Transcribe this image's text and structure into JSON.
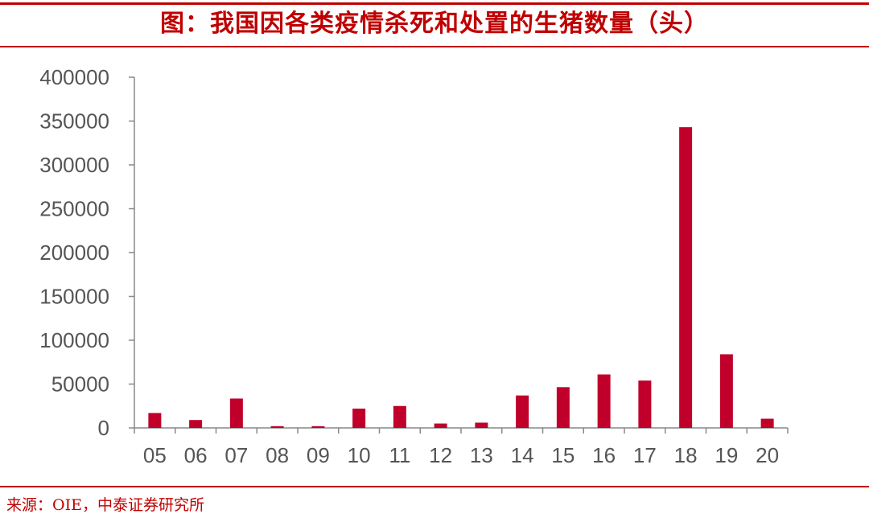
{
  "header": {
    "title": "图：我国因各类疫情杀死和处置的生猪数量（头）"
  },
  "footer": {
    "source": "来源：OIE，中泰证券研究所"
  },
  "colors": {
    "accent": "#c00000",
    "bar": "#c0002a",
    "axis": "#888888",
    "label": "#555555"
  },
  "chart_data": {
    "type": "bar",
    "title": "图：我国因各类疫情杀死和处置的生猪数量（头）",
    "xlabel": "",
    "ylabel": "",
    "categories": [
      "05",
      "06",
      "07",
      "08",
      "09",
      "10",
      "11",
      "12",
      "13",
      "14",
      "15",
      "16",
      "17",
      "18",
      "19",
      "20"
    ],
    "values": [
      17000,
      9000,
      33500,
      2000,
      2000,
      22000,
      25000,
      5000,
      6000,
      37000,
      46500,
      61000,
      54000,
      343000,
      84000,
      10500
    ],
    "ylim": [
      0,
      400000
    ],
    "yticks": [
      0,
      50000,
      100000,
      150000,
      200000,
      250000,
      300000,
      350000,
      400000
    ],
    "grid": false,
    "legend": "none"
  }
}
